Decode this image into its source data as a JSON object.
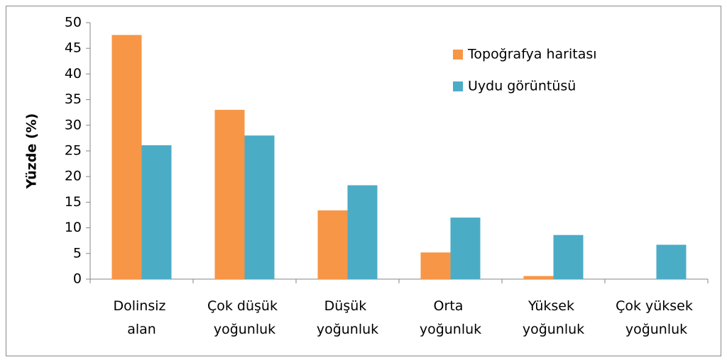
{
  "chart_data": {
    "type": "bar",
    "y_label": "Yüzde (%)",
    "categories": [
      "Dolinsiz alan",
      "Çok düşük yoğunluk",
      "Düşük yoğunluk",
      "Orta yoğunluk",
      "Yüksek yoğunluk",
      "Çok yüksek yoğunluk"
    ],
    "series": [
      {
        "name": "Topoğrafya haritası",
        "color": "#f79646",
        "values": [
          47.6,
          33,
          13.4,
          5.2,
          0.6,
          0
        ]
      },
      {
        "name": "Uydu görüntüsü",
        "color": "#4bacc6",
        "values": [
          26.1,
          28,
          18.3,
          12,
          8.6,
          6.7
        ]
      }
    ],
    "ylim": [
      0,
      50
    ],
    "yticks": [
      0,
      5,
      10,
      15,
      20,
      25,
      30,
      35,
      40,
      45,
      50
    ],
    "legend": "upper right"
  }
}
